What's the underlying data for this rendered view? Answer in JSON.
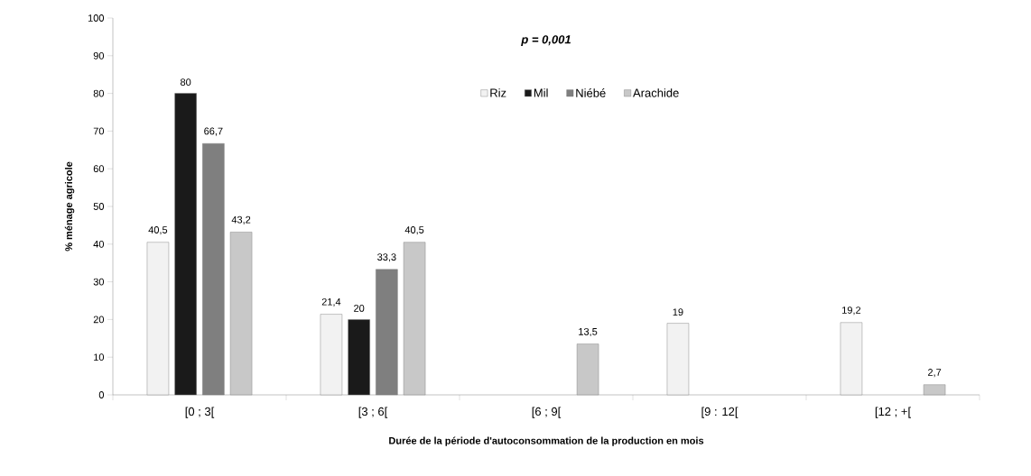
{
  "chart_data": {
    "type": "bar",
    "title": "p = 0,001",
    "xlabel": "Durée de la période d'autoconsommation de la production en mois",
    "ylabel": "% ménage agricole",
    "categories": [
      "[0 ; 3[",
      "[3 ; 6[",
      "[6 ; 9[",
      "[9 : 12[",
      "[12 ; +["
    ],
    "series": [
      {
        "name": "Riz",
        "color": "#f2f2f2",
        "values": [
          40.5,
          21.4,
          null,
          19,
          19.2
        ],
        "value_labels": [
          "40,5",
          "21,4",
          null,
          "19",
          "19,2"
        ]
      },
      {
        "name": "Mil",
        "color": "#1a1a1a",
        "values": [
          80,
          20,
          null,
          null,
          null
        ],
        "value_labels": [
          "80",
          "20",
          null,
          null,
          null
        ]
      },
      {
        "name": "Niébé",
        "color": "#7f7f7f",
        "values": [
          66.7,
          33.3,
          null,
          null,
          null
        ],
        "value_labels": [
          "66,7",
          "33,3",
          null,
          null,
          null
        ]
      },
      {
        "name": "Arachide",
        "color": "#c8c8c8",
        "values": [
          43.2,
          40.5,
          13.5,
          null,
          2.7
        ],
        "value_labels": [
          "43,2",
          "40,5",
          "13,5",
          null,
          "2,7"
        ]
      }
    ],
    "ylim": [
      0,
      100
    ],
    "yticks": [
      0,
      10,
      20,
      30,
      40,
      50,
      60,
      70,
      80,
      90,
      100
    ],
    "grid": false,
    "legend": "top"
  }
}
